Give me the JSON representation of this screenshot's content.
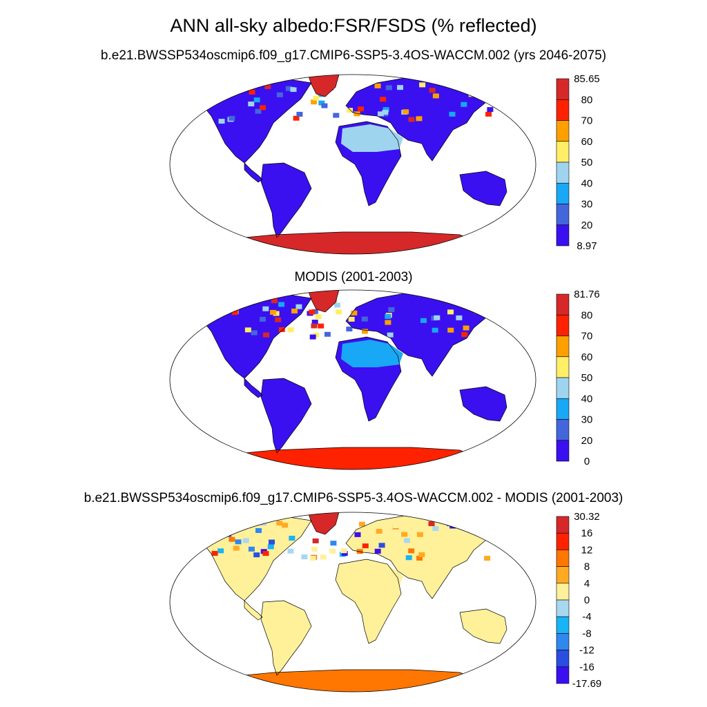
{
  "figure": {
    "title": "ANN all-sky albedo:FSR/FSDS (% reflected)"
  },
  "panels": [
    {
      "title": "b.e21.BWSSP534oscmip6.f09_g17.CMIP6-SSP5-3.4OS-WACCM.002 (yrs 2046-2075)",
      "colorbar": {
        "labels": [
          "85.65",
          "80",
          "70",
          "60",
          "50",
          "40",
          "30",
          "20",
          "8.97"
        ],
        "colors": [
          "#d62828",
          "#ff2200",
          "#ffa000",
          "#ffee66",
          "#9fd4ef",
          "#18a8f5",
          "#4466dd",
          "#3a10f0"
        ]
      },
      "field": {
        "land_base": "#3a10f0",
        "desert_fill": "#9fd4ef",
        "greenland_fill": "#d62828",
        "antarctica_fill": "#d62828"
      }
    },
    {
      "title": "MODIS (2001-2003)",
      "colorbar": {
        "labels": [
          "81.76",
          "80",
          "70",
          "60",
          "50",
          "40",
          "30",
          "20",
          "0"
        ],
        "colors": [
          "#d62828",
          "#ff2200",
          "#ffa000",
          "#ffee66",
          "#9fd4ef",
          "#18a8f5",
          "#4466dd",
          "#3a10f0"
        ]
      },
      "field": {
        "land_base": "#3a10f0",
        "desert_fill": "#18a8f5",
        "greenland_fill": "#d62828",
        "antarctica_fill": "#ff2200"
      }
    },
    {
      "title": "b.e21.BWSSP534oscmip6.f09_g17.CMIP6-SSP5-3.4OS-WACCM.002 - MODIS (2001-2003)",
      "colorbar": {
        "labels": [
          "30.32",
          "16",
          "12",
          "8",
          "4",
          "0",
          "-4",
          "-8",
          "-12",
          "-16",
          "-17.69"
        ],
        "colors": [
          "#d62828",
          "#ff2200",
          "#ff7700",
          "#ffaa22",
          "#fff09a",
          "#a8d8f0",
          "#18b4f5",
          "#2e88ee",
          "#2a4ee0",
          "#3a10f0"
        ]
      },
      "field": {
        "land_base": "#fff09a",
        "desert_fill": "#fff09a",
        "greenland_fill": "#d62828",
        "antarctica_fill": "#ff7700"
      }
    }
  ]
}
